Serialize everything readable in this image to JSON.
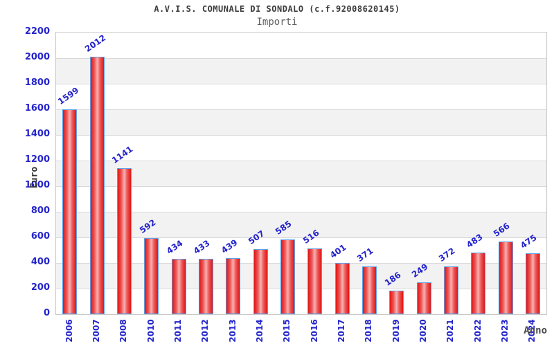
{
  "header": {
    "title": "A.V.I.S. COMUNALE DI SONDALO (c.f.92008620145)",
    "subtitle": "Importi"
  },
  "axes": {
    "y_title": "Euro",
    "x_title": "Anno"
  },
  "chart_data": {
    "type": "bar",
    "title": "A.V.I.S. COMUNALE DI SONDALO (c.f.92008620145)",
    "subtitle": "Importi",
    "xlabel": "Anno",
    "ylabel": "Euro",
    "categories": [
      "2006",
      "2007",
      "2008",
      "2010",
      "2011",
      "2012",
      "2013",
      "2014",
      "2015",
      "2016",
      "2017",
      "2018",
      "2019",
      "2020",
      "2021",
      "2022",
      "2023",
      "2024"
    ],
    "values": [
      1599,
      2012,
      1141,
      592,
      434,
      433,
      439,
      507,
      585,
      516,
      401,
      371,
      186,
      249,
      372,
      483,
      566,
      475
    ],
    "ylim": [
      0,
      2200
    ],
    "ytick_step": 200,
    "grid": "horizontal-bands",
    "legend": "none",
    "colors": {
      "tick_text": "#2424cc",
      "bar_edge": "#dd1717",
      "bar_center": "#f9b0b0",
      "bar_border": "#5fa0e8",
      "band_alt": "#f2f2f2",
      "grid_line": "#d9d9d9",
      "plot_border": "#c9c9c9",
      "title_text": "#3a3a3a",
      "subtitle_text": "#606060"
    }
  }
}
